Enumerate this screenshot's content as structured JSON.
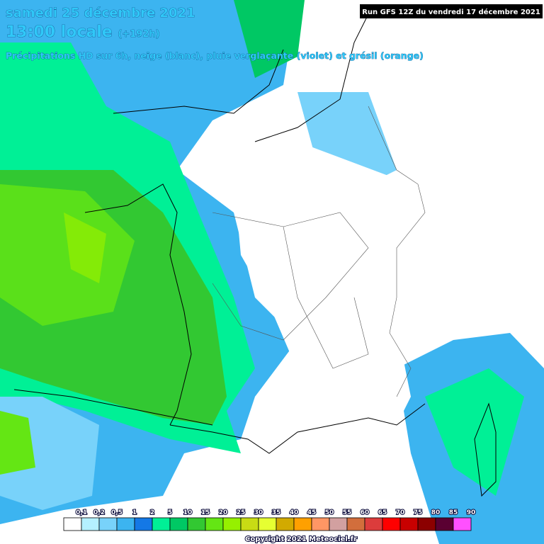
{
  "header": {
    "date": "samedi 25 décembre 2021",
    "time": "13:00 locale",
    "lead": "(+192h)",
    "subtitle": "Précipitations HD sur 6h, neige (blanc), pluie verglaçante (violet) et grésil (orange)"
  },
  "run": "Run GFS 12Z du vendredi 17 décembre 2021",
  "legend": {
    "labels": [
      "0,1",
      "0,2",
      "0,5",
      "1",
      "2",
      "5",
      "10",
      "15",
      "20",
      "25",
      "30",
      "35",
      "40",
      "45",
      "50",
      "55",
      "60",
      "65",
      "70",
      "75",
      "80",
      "85",
      "90"
    ],
    "colors": [
      "#ffffff",
      "#b4f0ff",
      "#78d2fa",
      "#3cb4f0",
      "#1478e6",
      "#00f096",
      "#00c864",
      "#32c832",
      "#64e614",
      "#96f000",
      "#c8dc14",
      "#e6ff32",
      "#d2aa00",
      "#ffa000",
      "#ff9664",
      "#d2a0a0",
      "#d26e3c",
      "#dc3c3c",
      "#ff0000",
      "#c80000",
      "#8c0000",
      "#5a0032",
      "#ff50ff"
    ]
  },
  "copyright": "Copyright 2021 Meteociel.fr"
}
